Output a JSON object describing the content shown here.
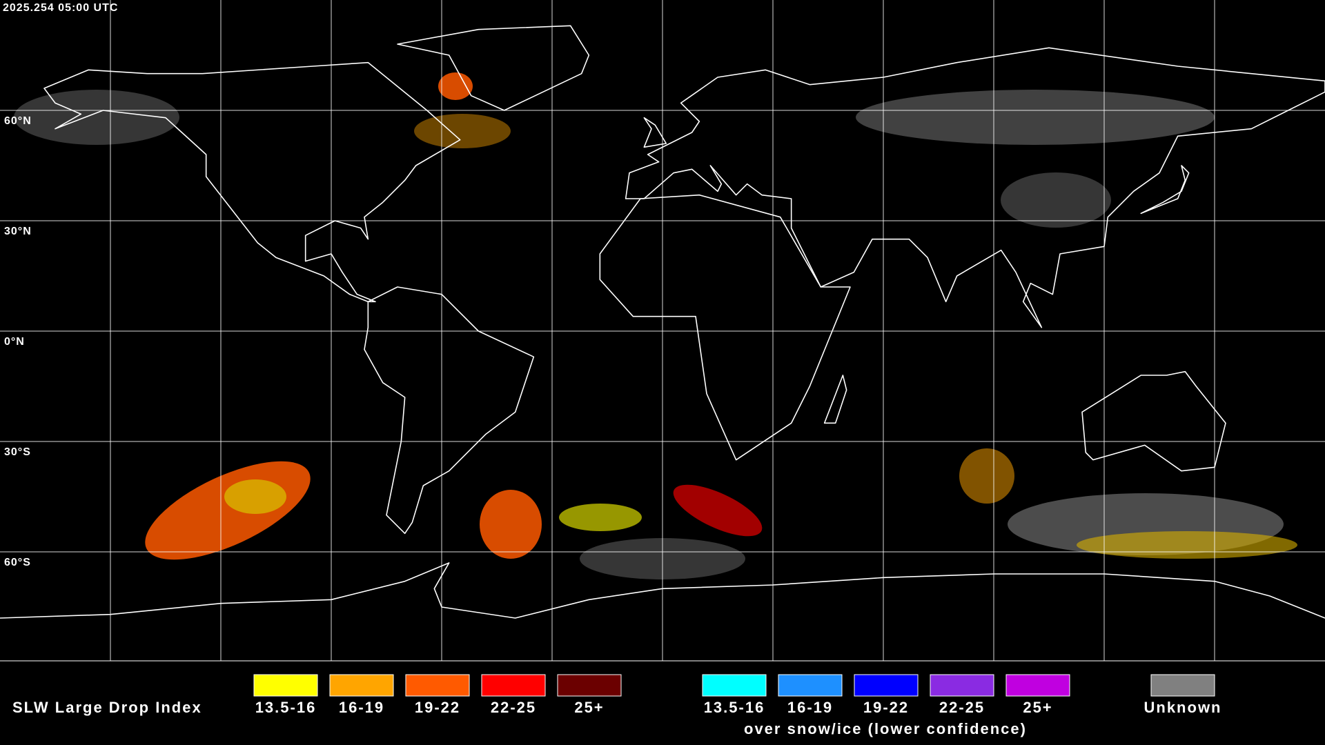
{
  "header": {
    "timestamp": "2025.254 05:00 UTC"
  },
  "map": {
    "lat_labels": [
      "60°N",
      "30°N",
      "0°N",
      "30°S",
      "60°S"
    ]
  },
  "legend": {
    "title": "SLW Large Drop Index",
    "items": [
      {
        "label": "13.5-16",
        "color": "#ffff00"
      },
      {
        "label": "16-19",
        "color": "#ffa500"
      },
      {
        "label": "19-22",
        "color": "#ff5a00"
      },
      {
        "label": "22-25",
        "color": "#ff0000"
      },
      {
        "label": "25+",
        "color": "#6b0000"
      }
    ],
    "snow_items": [
      {
        "label": "13.5-16",
        "color": "#00ffff"
      },
      {
        "label": "16-19",
        "color": "#1e90ff"
      },
      {
        "label": "19-22",
        "color": "#0000ff"
      },
      {
        "label": "22-25",
        "color": "#8a2be2"
      },
      {
        "label": "25+",
        "color": "#c000e0"
      }
    ],
    "snow_note": "over snow/ice (lower confidence)",
    "unknown": {
      "label": "Unknown",
      "color": "#808080"
    }
  }
}
